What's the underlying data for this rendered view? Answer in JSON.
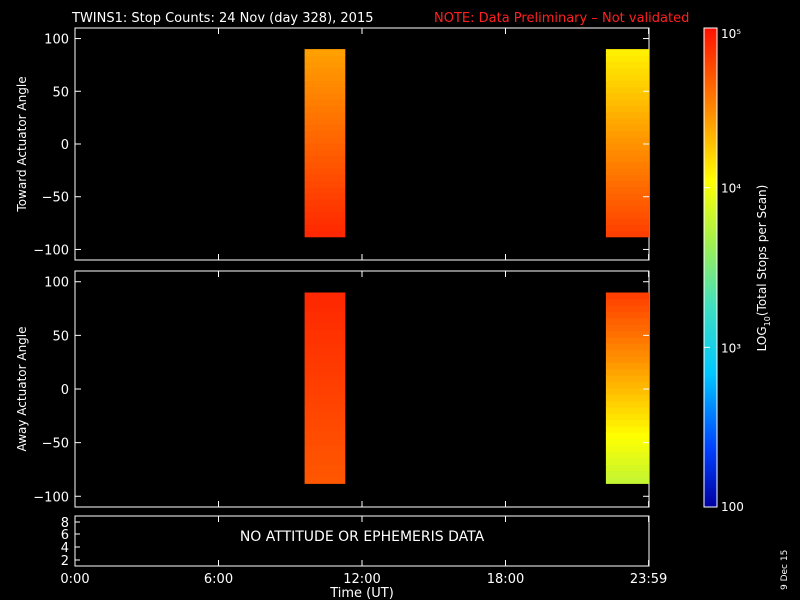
{
  "title": "TWINS1: Stop Counts: 24 Nov (day 328), 2015",
  "note": "NOTE: Data Preliminary – Not validated",
  "colors": {
    "background": "#000000",
    "axis": "#ffffff",
    "note": "#ff2020"
  },
  "colorbar": {
    "label": "LOG10(Total Stops per Scan)",
    "label_main": "LOG",
    "label_sub": "10",
    "label_rest": "(Total Stops per Scan)",
    "ticks": [
      "100",
      "10³",
      "10⁴",
      "10⁵"
    ],
    "range_log10": [
      2,
      5
    ],
    "scale": "log"
  },
  "side_label": "9 Dec 15",
  "bottom_panel": {
    "message": "NO ATTITUDE OR EPHEMERIS DATA",
    "ticks": [
      "8",
      "6",
      "4",
      "2"
    ]
  },
  "chart_data": [
    {
      "type": "heatmap",
      "ylabel": "Toward Actuator Angle",
      "ylim": [
        -110,
        110
      ],
      "yticks": [
        "100",
        "50",
        "0",
        "−50",
        "−100"
      ],
      "x_hours_range": [
        0,
        24
      ],
      "data_blocks": [
        {
          "t_start_h": 9.6,
          "t_end_h": 11.3,
          "angle_range": [
            -88,
            90
          ],
          "log10_counts_upper": 4.4,
          "log10_counts_lower": 4.9
        },
        {
          "t_start_h": 22.2,
          "t_end_h": 24.0,
          "angle_range": [
            -88,
            90
          ],
          "log10_counts_upper": 4.1,
          "log10_counts_lower": 4.8
        }
      ]
    },
    {
      "type": "heatmap",
      "ylabel": "Away Actuator Angle",
      "ylim": [
        -110,
        110
      ],
      "yticks": [
        "100",
        "50",
        "0",
        "−50",
        "−100"
      ],
      "x_hours_range": [
        0,
        24
      ],
      "data_blocks": [
        {
          "t_start_h": 9.6,
          "t_end_h": 11.3,
          "angle_range": [
            -88,
            90
          ],
          "log10_counts_upper": 4.9,
          "log10_counts_lower": 4.7
        },
        {
          "t_start_h": 22.2,
          "t_end_h": 24.0,
          "angle_range": [
            -88,
            90
          ],
          "log10_counts_upper": 4.8,
          "log10_counts_lower": 3.8
        }
      ]
    }
  ],
  "x_axis": {
    "label": "Time (UT)",
    "ticks": [
      {
        "hour": 0,
        "label": "0:00"
      },
      {
        "hour": 6,
        "label": "6:00"
      },
      {
        "hour": 12,
        "label": "12:00"
      },
      {
        "hour": 18,
        "label": "18:00"
      },
      {
        "hour": 23.983,
        "label": "23:59"
      }
    ]
  }
}
